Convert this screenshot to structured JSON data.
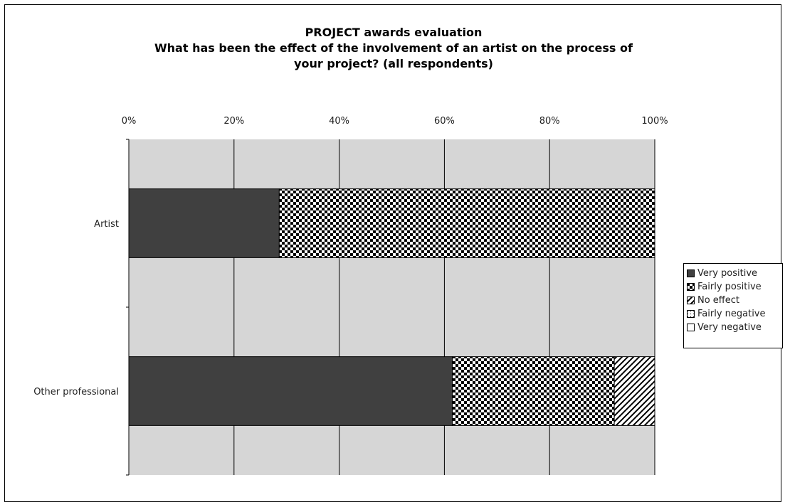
{
  "chart_data": {
    "type": "bar",
    "orientation": "horizontal",
    "stacked": "percent",
    "title_lines": [
      "PROJECT awards evaluation",
      "What has been the effect of the involvement of an artist on the process of",
      "your project? (all respondents)"
    ],
    "categories": [
      "Artist",
      "Other professional"
    ],
    "series": [
      {
        "name": "Very positive",
        "values": [
          28.6,
          61.5
        ],
        "color": "#404040",
        "pattern": "solid"
      },
      {
        "name": "Fairly positive",
        "values": [
          71.4,
          30.8
        ],
        "color": "#000000",
        "pattern": "checker"
      },
      {
        "name": "No effect",
        "values": [
          0,
          7.7
        ],
        "color": "#000000",
        "pattern": "diagonal"
      },
      {
        "name": "Fairly negative",
        "values": [
          0,
          0
        ],
        "color": "#000000",
        "pattern": "dots"
      },
      {
        "name": "Very negative",
        "values": [
          0,
          0
        ],
        "color": "#000000",
        "pattern": "none"
      }
    ],
    "xlim": [
      0,
      100
    ],
    "x_ticks": [
      "0%",
      "20%",
      "40%",
      "60%",
      "80%",
      "100%"
    ],
    "x_axis_position": "top",
    "grid": true,
    "plot_background": "#d6d6d6",
    "legend_position": "right"
  }
}
